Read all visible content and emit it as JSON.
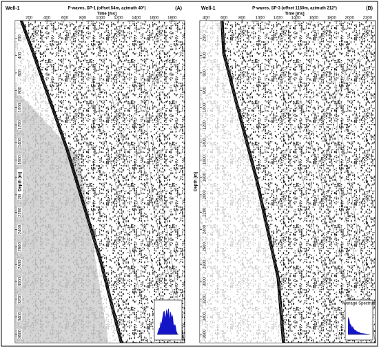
{
  "chart_data": [
    {
      "type": "seismic",
      "well": "Well-1",
      "title": "P-waves, SP-1 (offset 54m, azimuth 40°)",
      "panel_label": "(A)",
      "x_label": "Time [ms]",
      "y_label": "Depth [m]",
      "xlim": [
        45,
        1940
      ],
      "xticks": [
        200,
        400,
        600,
        800,
        1000,
        1200,
        1400,
        1600,
        1800
      ],
      "ylim": [
        0,
        3700
      ],
      "yticks": [
        200,
        400,
        600,
        800,
        1000,
        1200,
        1400,
        1600,
        1800,
        2000,
        2200,
        2400,
        2600,
        2800,
        3000,
        3200,
        3400,
        3600
      ]
    },
    {
      "type": "seismic",
      "well": "Well-1",
      "title": "P-waves, SP-3 (offset 1150m, azimuth 212°)",
      "panel_label": "(B)",
      "x_label": "Time [ms]",
      "y_label": "Depth [m]",
      "inset_title": "Average Spectrum",
      "xlim": [
        330,
        2290
      ],
      "xticks": [
        400,
        600,
        800,
        1000,
        1200,
        1400,
        1600,
        1800,
        2000,
        2200
      ],
      "ylim": [
        0,
        3700
      ],
      "yticks": [
        200,
        400,
        600,
        800,
        1000,
        1200,
        1400,
        1600,
        1800,
        2000,
        2200,
        2400,
        2600,
        2800,
        3000,
        3200,
        3400,
        3600
      ]
    }
  ]
}
